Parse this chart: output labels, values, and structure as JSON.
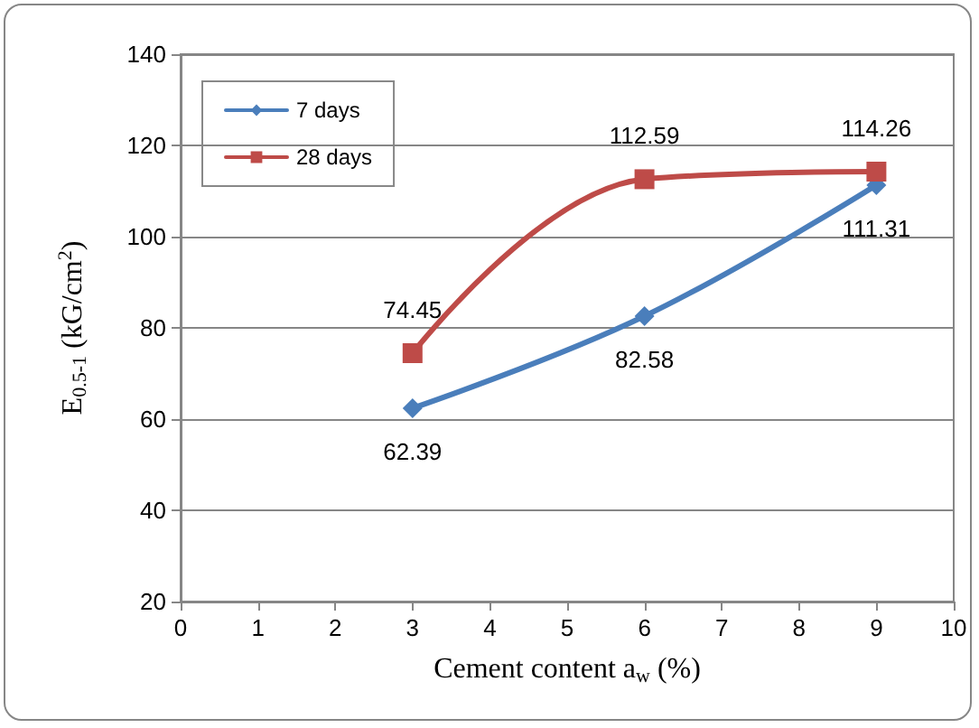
{
  "chart_data": {
    "type": "line",
    "xlabel": "Cement content a$_{w}$ (%)",
    "ylabel": "E$_{0.5-1}$ (kG/cm$^{2}$)",
    "x": [
      3,
      6,
      9
    ],
    "series": [
      {
        "name": "7 days",
        "color": "#4a7ebb",
        "marker": "diamond",
        "values": [
          62.39,
          82.58,
          111.31
        ]
      },
      {
        "name": "28 days",
        "color": "#be4b48",
        "marker": "square",
        "values": [
          74.45,
          112.59,
          114.26
        ]
      }
    ],
    "xlim": [
      0,
      10
    ],
    "xticks": [
      0,
      1,
      2,
      3,
      4,
      5,
      6,
      7,
      8,
      9,
      10
    ],
    "ylim": [
      20,
      140
    ],
    "yticks": [
      20,
      40,
      60,
      80,
      100,
      120,
      140
    ],
    "grid": "y",
    "legend": "top left",
    "data_labels": true,
    "line_style": "solid"
  }
}
